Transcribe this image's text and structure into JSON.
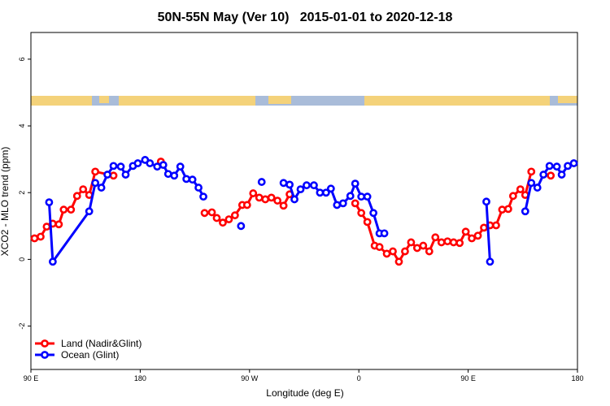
{
  "chart_data": {
    "type": "line",
    "title": "50N-55N May (Ver 10)   2015-01-01 to 2020-12-18",
    "xlabel": "Longitude (deg E)",
    "ylabel": "XCO2 - MLO trend (ppm)",
    "xlim": [
      90,
      540
    ],
    "ylim": [
      -3.3,
      6.8
    ],
    "xticks": [
      {
        "value": 90,
        "label": "90 E"
      },
      {
        "value": 180,
        "label": "180"
      },
      {
        "value": 270,
        "label": "90 W"
      },
      {
        "value": 360,
        "label": "0"
      },
      {
        "value": 450,
        "label": "90 E"
      },
      {
        "value": 540,
        "label": "180"
      }
    ],
    "yticks": [
      -2,
      0,
      2,
      4,
      6
    ],
    "legend": "bottom-left",
    "series": [
      {
        "name": "Land (Nadir&Glint)",
        "color": "#ff0000",
        "x": [
          93,
          98,
          103,
          108,
          113,
          117,
          123,
          128,
          133,
          138,
          143,
          158,
          null,
          197,
          null,
          233,
          239,
          243,
          248,
          253,
          258,
          264,
          268,
          273,
          278,
          283,
          288,
          293,
          298,
          303,
          null,
          357,
          362,
          367,
          373,
          377,
          383,
          388,
          393,
          398,
          403,
          408,
          413,
          418,
          423,
          428,
          433,
          438,
          443,
          448,
          453,
          458,
          463,
          468,
          473,
          478,
          483,
          487,
          493,
          497,
          502,
          null,
          518
        ],
        "values": [
          0.63,
          0.68,
          0.98,
          1.07,
          1.05,
          1.49,
          1.49,
          1.9,
          2.1,
          1.93,
          2.63,
          2.51,
          null,
          2.93,
          null,
          1.39,
          1.41,
          1.24,
          1.1,
          1.2,
          1.32,
          1.63,
          1.63,
          1.98,
          1.85,
          1.8,
          1.85,
          1.76,
          1.61,
          1.95,
          null,
          1.68,
          1.39,
          1.12,
          0.41,
          0.37,
          0.17,
          0.24,
          -0.07,
          0.24,
          0.51,
          0.34,
          0.41,
          0.24,
          0.66,
          0.51,
          0.54,
          0.51,
          0.49,
          0.83,
          0.63,
          0.71,
          0.95,
          1.02,
          1.02,
          1.49,
          1.51,
          1.9,
          2.1,
          1.93,
          2.63,
          null,
          2.51
        ]
      },
      {
        "name": "Ocean (Glint)",
        "color": "#0000ff",
        "x": [
          105,
          108,
          138,
          143,
          148,
          153,
          158,
          164,
          168,
          174,
          178,
          184,
          188,
          194,
          199,
          203,
          208,
          213,
          218,
          223,
          228,
          232,
          null,
          263,
          null,
          280,
          null,
          298,
          303,
          307,
          312,
          317,
          323,
          328,
          333,
          337,
          342,
          347,
          353,
          357,
          362,
          367,
          372,
          377,
          381,
          null,
          465,
          468,
          null,
          497,
          502,
          507,
          512,
          517,
          523,
          527,
          532,
          537
        ],
        "values": [
          1.71,
          -0.07,
          1.44,
          2.29,
          2.15,
          2.54,
          2.8,
          2.78,
          2.54,
          2.8,
          2.88,
          2.98,
          2.88,
          2.78,
          2.83,
          2.56,
          2.51,
          2.78,
          2.41,
          2.39,
          2.15,
          1.88,
          null,
          1.0,
          null,
          2.32,
          null,
          2.29,
          2.24,
          1.8,
          2.1,
          2.22,
          2.22,
          2.0,
          2.0,
          2.12,
          1.63,
          1.68,
          1.9,
          2.27,
          1.88,
          1.88,
          1.39,
          0.78,
          0.78,
          null,
          1.73,
          -0.07,
          null,
          1.44,
          2.29,
          2.15,
          2.54,
          2.8,
          2.78,
          2.54,
          2.8,
          2.88
        ]
      }
    ]
  }
}
